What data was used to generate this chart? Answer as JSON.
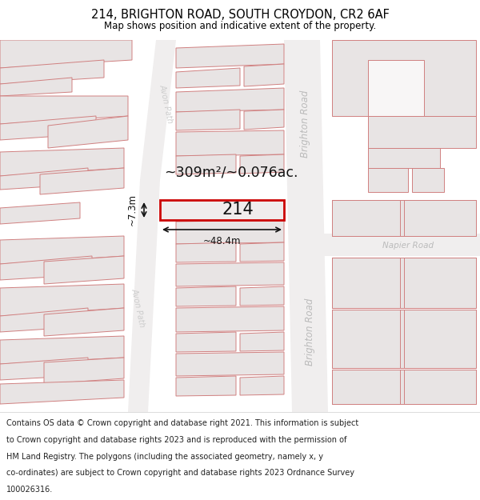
{
  "title": "214, BRIGHTON ROAD, SOUTH CROYDON, CR2 6AF",
  "subtitle": "Map shows position and indicative extent of the property.",
  "footer_lines": [
    "Contains OS data © Crown copyright and database right 2021. This information is subject",
    "to Crown copyright and database rights 2023 and is reproduced with the permission of",
    "HM Land Registry. The polygons (including the associated geometry, namely x, y",
    "co-ordinates) are subject to Crown copyright and database rights 2023 Ordnance Survey",
    "100026316."
  ],
  "area_text": "~309m²/~0.076ac.",
  "property_label": "214",
  "width_label": "~48.4m",
  "height_label": "~7.3m",
  "road_right": "Brighton Road",
  "road_left": "Avon Path",
  "road_cross": "Napier Road",
  "block_fill": "#e8e4e4",
  "block_edge": "#d08080",
  "prop_fill": "#f0ecec",
  "prop_edge": "#cc0000",
  "road_fill": "#f0eeee",
  "map_bg": "#faf9f9",
  "white": "#ffffff"
}
